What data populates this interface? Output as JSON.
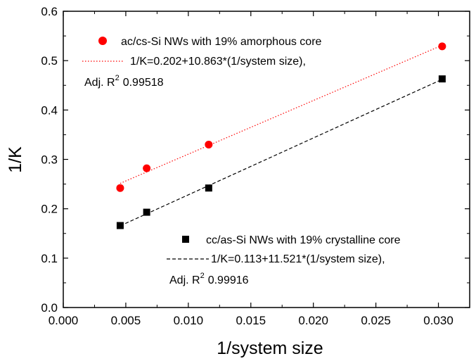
{
  "chart_data": {
    "type": "scatter",
    "xlabel": "1/system size",
    "ylabel": "1/K",
    "xlim": [
      0.0,
      0.0325
    ],
    "ylim": [
      0.0,
      0.6
    ],
    "x_ticks": [
      "0.000",
      "0.005",
      "0.010",
      "0.015",
      "0.020",
      "0.025",
      "0.030"
    ],
    "x_tick_values": [
      0.0,
      0.005,
      0.01,
      0.015,
      0.02,
      0.025,
      0.03
    ],
    "y_ticks": [
      "0.0",
      "0.1",
      "0.2",
      "0.3",
      "0.4",
      "0.5",
      "0.6"
    ],
    "y_tick_values": [
      0.0,
      0.1,
      0.2,
      0.3,
      0.4,
      0.5,
      0.6
    ],
    "grid": false,
    "series": [
      {
        "name": "ac/cs-Si NWs with 19% amorphous core",
        "marker": "circle",
        "color": "#ff0000",
        "x": [
          0.00455,
          0.00667,
          0.01163,
          0.0303
        ],
        "y": [
          0.242,
          0.282,
          0.33,
          0.529
        ],
        "fit": {
          "label": "1/K=0.202+10.863*(1/system size),",
          "r2_prefix": "Adj. R",
          "r2_sup": "2",
          "r2_value": "0.99518",
          "intercept": 0.202,
          "slope": 10.863,
          "line_style": "dotted",
          "color": "#ff0000"
        }
      },
      {
        "name": "cc/as-Si NWs with 19% crystalline core",
        "marker": "square",
        "color": "#000000",
        "x": [
          0.00455,
          0.00667,
          0.01163,
          0.0303
        ],
        "y": [
          0.166,
          0.193,
          0.242,
          0.463
        ],
        "fit": {
          "label": "1/K=0.113+11.521*(1/system size),",
          "r2_prefix": "Adj. R",
          "r2_sup": "2",
          "r2_value": "0.99916",
          "intercept": 0.113,
          "slope": 11.521,
          "line_style": "dashed",
          "color": "#000000"
        }
      }
    ]
  }
}
